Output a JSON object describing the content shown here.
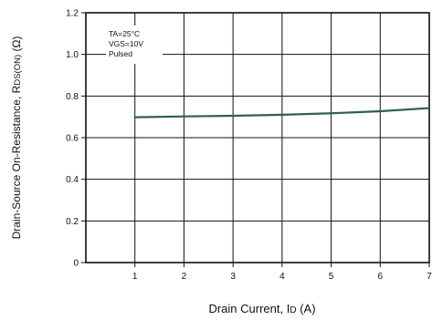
{
  "chart_data": {
    "type": "line",
    "xlabel": {
      "main": "Drain Current, I",
      "sub": "D",
      "unit": " (A)"
    },
    "ylabel": {
      "main": "Drain-Source On-Resistance, R",
      "sub": "DS(ON)",
      "unit": " (Ω)"
    },
    "xlim": [
      0,
      7
    ],
    "ylim": [
      0,
      1.2
    ],
    "xticks": [
      1,
      2,
      3,
      4,
      5,
      6,
      7
    ],
    "xtick_labels": [
      "1",
      "2",
      "3",
      "4",
      "5",
      "6",
      "7"
    ],
    "yticks": [
      0,
      0.2,
      0.4,
      0.6,
      0.8,
      1.0,
      1.2
    ],
    "ytick_labels": [
      "0",
      "0.2",
      "0.4",
      "0.6",
      "0.8",
      "1.0",
      "1.2"
    ],
    "grid": true,
    "annotation": [
      "TA=25°C",
      "VGS=10V",
      "Pulsed"
    ],
    "series": [
      {
        "color": "#2f5d5a",
        "x": [
          1,
          2,
          3,
          4,
          5,
          6,
          7
        ],
        "y": [
          0.698,
          0.702,
          0.705,
          0.71,
          0.717,
          0.727,
          0.742
        ]
      }
    ]
  }
}
